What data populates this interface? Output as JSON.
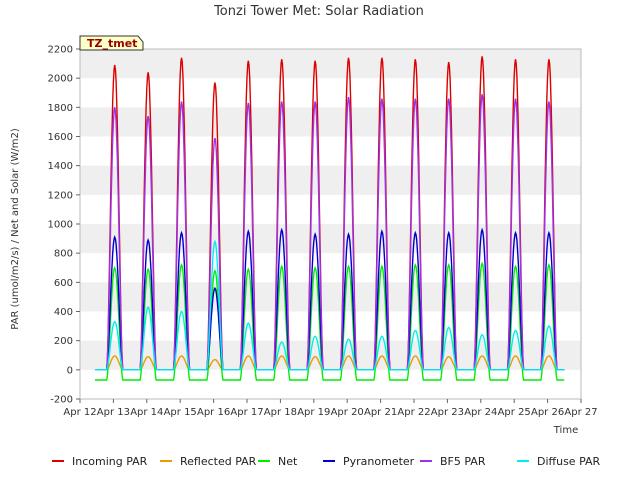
{
  "chart_data": {
    "type": "line",
    "title": "Tonzi Tower Met: Solar Radiation",
    "tag": "TZ_tmet",
    "xlabel": "Time",
    "ylabel": "PAR (umol/m2/s) / Net and Solar (W/m2)",
    "xlim": [
      12,
      27
    ],
    "ylim": [
      -200,
      2200
    ],
    "x_ticks": [
      {
        "value": 12,
        "label": "Apr 12"
      },
      {
        "value": 13,
        "label": "Apr 13"
      },
      {
        "value": 14,
        "label": "Apr 14"
      },
      {
        "value": 15,
        "label": "Apr 15"
      },
      {
        "value": 16,
        "label": "Apr 16"
      },
      {
        "value": 17,
        "label": "Apr 17"
      },
      {
        "value": 18,
        "label": "Apr 18"
      },
      {
        "value": 19,
        "label": "Apr 19"
      },
      {
        "value": 20,
        "label": "Apr 20"
      },
      {
        "value": 21,
        "label": "Apr 21"
      },
      {
        "value": 22,
        "label": "Apr 22"
      },
      {
        "value": 23,
        "label": "Apr 23"
      },
      {
        "value": 24,
        "label": "Apr 24"
      },
      {
        "value": 25,
        "label": "Apr 25"
      },
      {
        "value": 26,
        "label": "Apr 26"
      },
      {
        "value": 27,
        "label": "Apr 27"
      }
    ],
    "y_ticks": [
      -200,
      0,
      200,
      400,
      600,
      800,
      1000,
      1200,
      1400,
      1600,
      1800,
      2000,
      2200
    ],
    "grid": "horizontal bands",
    "legend_position": "bottom",
    "day_start": 12.8,
    "day_peak": 13.0,
    "day_end": 13.28,
    "series": [
      {
        "name": "Incoming PAR",
        "color": "#dd0000",
        "night": 0,
        "peaks": [
          2090,
          2040,
          2140,
          1970,
          2120,
          2130,
          2120,
          2140,
          2140,
          2130,
          2110,
          2150,
          2130,
          2130
        ]
      },
      {
        "name": "Reflected PAR",
        "color": "#ee9900",
        "night": 0,
        "peaks": [
          95,
          90,
          95,
          70,
          95,
          95,
          90,
          95,
          95,
          95,
          90,
          95,
          95,
          95
        ]
      },
      {
        "name": "Net",
        "color": "#00ee00",
        "night": -70,
        "peaks": [
          700,
          690,
          720,
          680,
          690,
          710,
          700,
          710,
          710,
          720,
          720,
          730,
          710,
          720
        ]
      },
      {
        "name": "Pyranometer",
        "color": "#0000cc",
        "night": 0,
        "peaks": [
          910,
          890,
          940,
          560,
          950,
          960,
          930,
          930,
          950,
          940,
          940,
          960,
          940,
          940
        ]
      },
      {
        "name": "BF5 PAR",
        "color": "#9933ee",
        "night": 0,
        "peaks": [
          1800,
          1740,
          1840,
          1590,
          1830,
          1840,
          1840,
          1870,
          1860,
          1860,
          1860,
          1890,
          1860,
          1840
        ]
      },
      {
        "name": "Diffuse PAR",
        "color": "#00eeee",
        "night": 0,
        "peaks": [
          330,
          430,
          400,
          880,
          320,
          190,
          230,
          210,
          230,
          270,
          290,
          240,
          270,
          300
        ]
      }
    ]
  }
}
